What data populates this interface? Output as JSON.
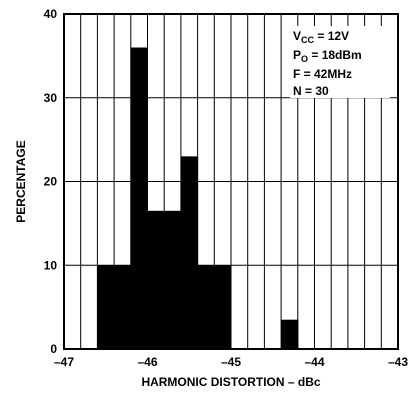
{
  "chart_data": {
    "type": "bar",
    "subtype": "histogram",
    "xlabel": "HARMONIC DISTORTION – dBc",
    "ylabel": "PERCENTAGE",
    "xlim": [
      -47,
      -43
    ],
    "ylim": [
      0,
      40
    ],
    "x_tick_labels": [
      "–47",
      "–46",
      "–45",
      "–44",
      "–43"
    ],
    "y_tick_labels": [
      "0",
      "10",
      "20",
      "30",
      "40"
    ],
    "x_minor_step": 0.2,
    "y_major_step": 10,
    "grid": true,
    "bin_width": 0.2,
    "bins": [
      {
        "start": -46.6,
        "end": -46.4,
        "value": 10
      },
      {
        "start": -46.4,
        "end": -46.2,
        "value": 10
      },
      {
        "start": -46.2,
        "end": -46.0,
        "value": 36
      },
      {
        "start": -46.0,
        "end": -45.8,
        "value": 16.5
      },
      {
        "start": -45.8,
        "end": -45.6,
        "value": 16.5
      },
      {
        "start": -45.6,
        "end": -45.4,
        "value": 23
      },
      {
        "start": -45.4,
        "end": -45.2,
        "value": 10
      },
      {
        "start": -45.2,
        "end": -45.0,
        "value": 10
      },
      {
        "start": -44.4,
        "end": -44.2,
        "value": 3.5
      }
    ],
    "annotations": {
      "vcc": {
        "base": "V",
        "sub": "CC",
        "rest": " = 12V"
      },
      "po": {
        "base": "P",
        "sub": "O",
        "rest": " = 18dBm"
      },
      "freq": "F = 42MHz",
      "n": "N = 30"
    },
    "legend_placement": "top-right"
  }
}
